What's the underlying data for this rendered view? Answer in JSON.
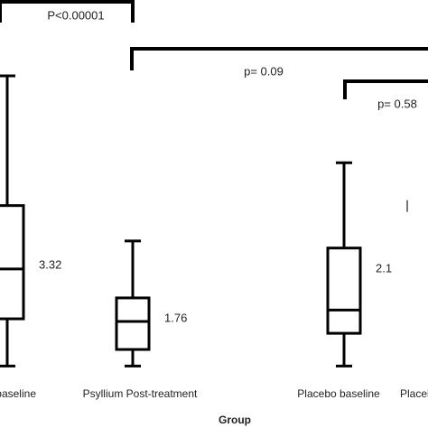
{
  "chart_data": {
    "type": "box",
    "x_label": "Group",
    "categories": [
      "Psyllium baseline",
      "Psyllium Post-treatment",
      "Placebo baseline",
      "Placebo Post-treatment"
    ],
    "whisker_low": [
      0.44,
      0.44,
      0.44,
      null
    ],
    "q1": [
      1.84,
      0.93,
      1.41,
      null
    ],
    "median": [
      3.32,
      1.76,
      2.1,
      null
    ],
    "q3": [
      5.2,
      2.46,
      3.94,
      null
    ],
    "whisker_high": [
      9.05,
      4.15,
      6.47,
      5.36
    ],
    "color": "#000000",
    "ylim": [
      -1.4,
      11.3
    ],
    "annotations": [
      "P<0.00001",
      "p= 0.09",
      "p= 0.58"
    ]
  }
}
